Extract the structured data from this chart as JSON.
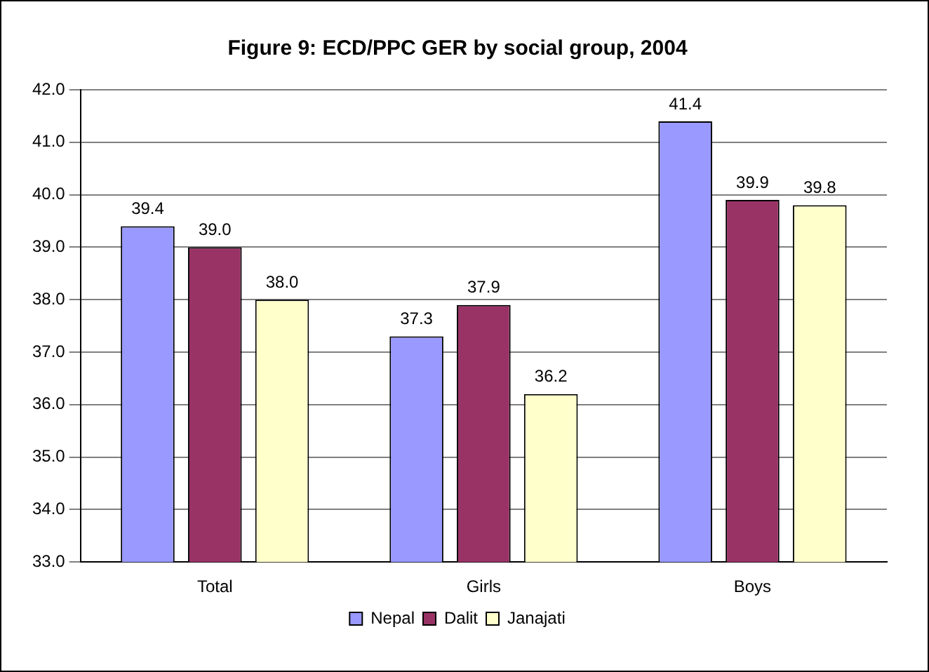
{
  "chart_data": {
    "type": "bar",
    "title": "Figure 9: ECD/PPC GER by social group, 2004",
    "categories": [
      "Total",
      "Girls",
      "Boys"
    ],
    "series": [
      {
        "name": "Nepal",
        "color": "#9999ff",
        "values": [
          39.4,
          37.3,
          41.4
        ],
        "value_labels": [
          "39.4",
          "37.3",
          "41.4"
        ]
      },
      {
        "name": "Dalit",
        "color": "#993366",
        "values": [
          39.0,
          37.9,
          39.9
        ],
        "value_labels": [
          "39.0",
          "37.9",
          "39.9"
        ]
      },
      {
        "name": "Janajati",
        "color": "#ffffcc",
        "values": [
          38.0,
          36.2,
          39.8
        ],
        "value_labels": [
          "38.0",
          "36.2",
          "39.8"
        ]
      }
    ],
    "ylim": [
      33,
      42
    ],
    "yticks": [
      {
        "value": 33,
        "label": "33.0"
      },
      {
        "value": 34,
        "label": "34.0"
      },
      {
        "value": 35,
        "label": "35.0"
      },
      {
        "value": 36,
        "label": "36.0"
      },
      {
        "value": 37,
        "label": "37.0"
      },
      {
        "value": 38,
        "label": "38.0"
      },
      {
        "value": 39,
        "label": "39.0"
      },
      {
        "value": 40,
        "label": "40.0"
      },
      {
        "value": 41,
        "label": "41.0"
      },
      {
        "value": 42,
        "label": "42.0"
      }
    ],
    "grid": "y",
    "legend": "bottom"
  }
}
